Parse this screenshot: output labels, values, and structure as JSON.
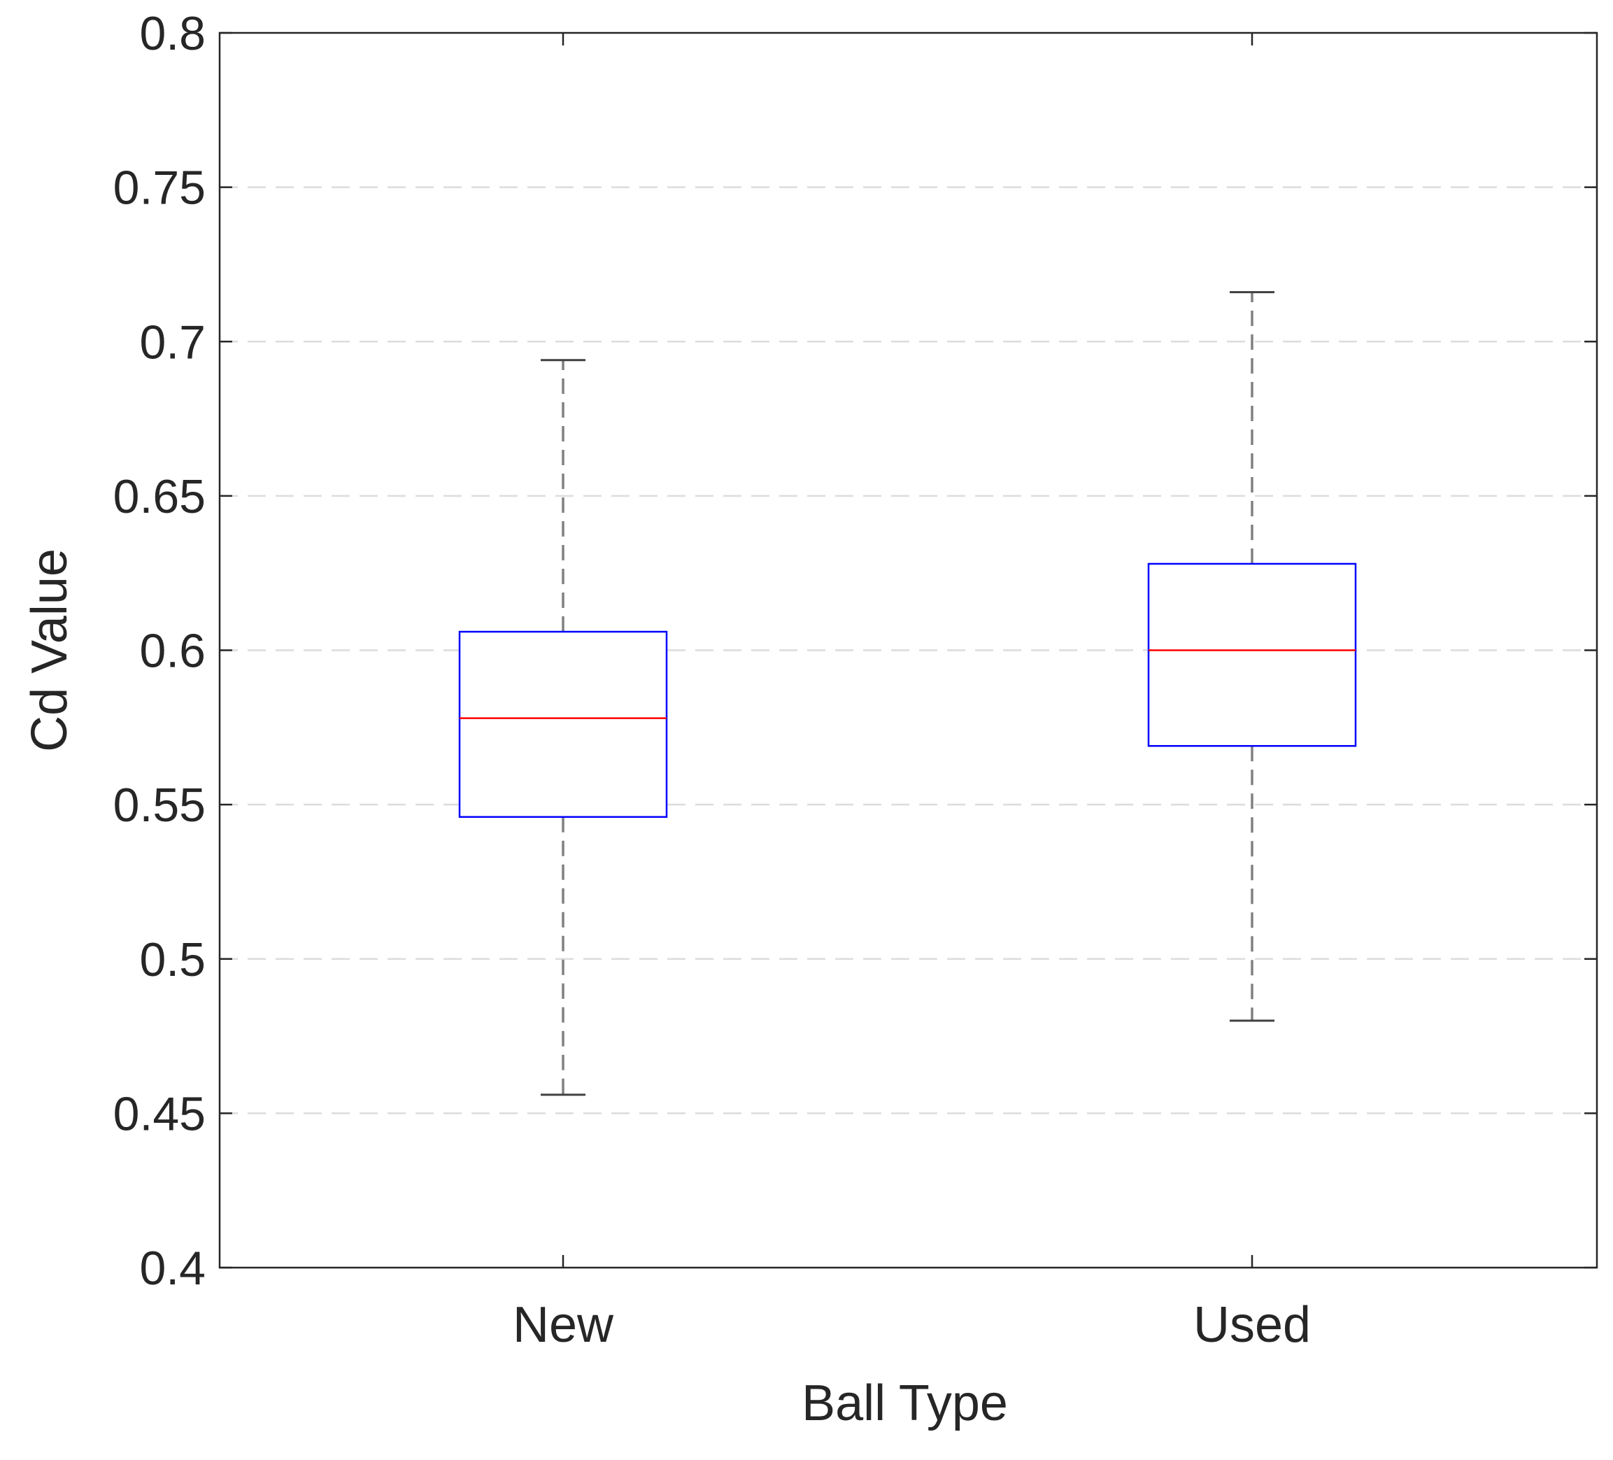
{
  "chart_data": {
    "type": "boxplot",
    "xlabel": "Ball Type",
    "ylabel": "Cd Value",
    "ylim": [
      0.4,
      0.8
    ],
    "yticks": [
      0.4,
      0.45,
      0.5,
      0.55,
      0.6,
      0.65,
      0.7,
      0.75,
      0.8
    ],
    "ytick_labels": [
      "0.4",
      "0.45",
      "0.5",
      "0.55",
      "0.6",
      "0.65",
      "0.7",
      "0.75",
      "0.8"
    ],
    "grid": "horizontal-dashed",
    "categories": [
      "New",
      "Used"
    ],
    "boxes": [
      {
        "category": "New",
        "whisker_low": 0.456,
        "q1": 0.546,
        "median": 0.578,
        "q3": 0.606,
        "whisker_high": 0.694
      },
      {
        "category": "Used",
        "whisker_low": 0.48,
        "q1": 0.569,
        "median": 0.6,
        "q3": 0.628,
        "whisker_high": 0.716
      }
    ],
    "colors": {
      "box": "#0000ff",
      "median": "#ff0000",
      "whisker": "#808080",
      "whisker_cap": "#404040",
      "grid": "#dcdcdc",
      "axis": "#262626",
      "text": "#262626"
    }
  }
}
